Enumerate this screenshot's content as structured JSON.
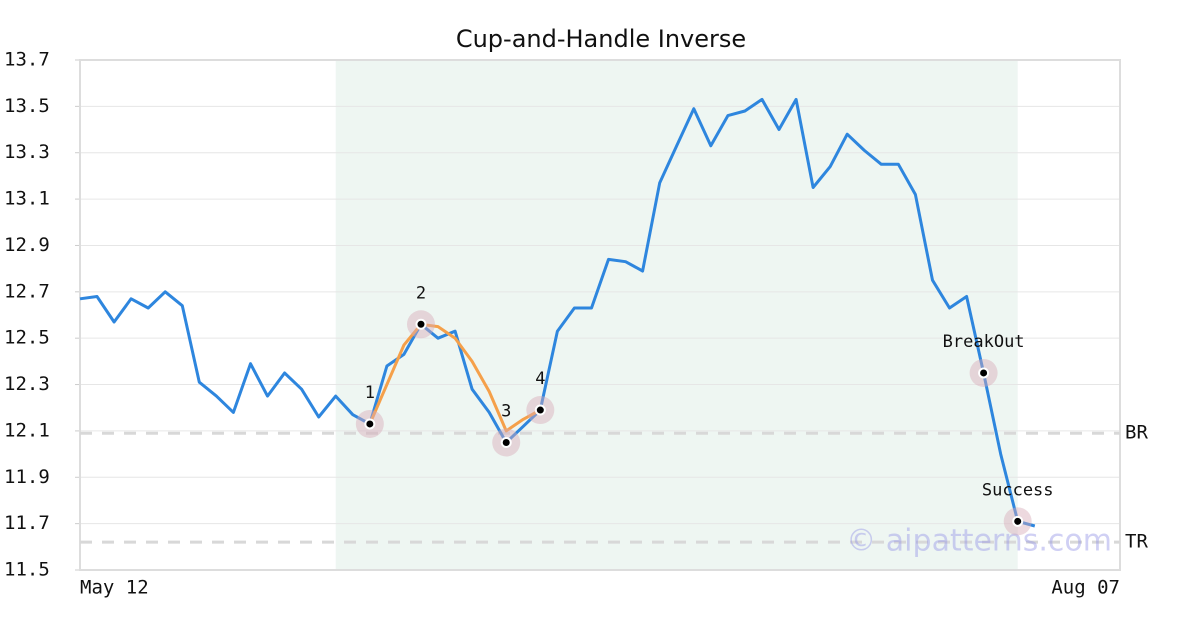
{
  "chart_data": {
    "type": "line",
    "title": "Cup-and-Handle Inverse",
    "categories": [
      "May 12",
      null,
      null,
      null,
      null,
      null,
      null,
      null,
      null,
      null,
      null,
      null,
      null,
      null,
      null,
      null,
      null,
      null,
      null,
      null,
      null,
      null,
      null,
      null,
      null,
      null,
      null,
      null,
      null,
      null,
      null,
      null,
      null,
      null,
      null,
      null,
      null,
      null,
      null,
      null,
      null,
      null,
      null,
      null,
      null,
      null,
      null,
      null,
      null,
      null,
      null,
      null,
      null,
      null,
      null,
      null,
      null,
      null,
      null,
      null,
      null,
      "Aug 07"
    ],
    "series": [
      {
        "color": "#2e86de",
        "values": [
          12.67,
          12.68,
          12.57,
          12.67,
          12.63,
          12.7,
          12.64,
          12.31,
          12.25,
          12.18,
          12.39,
          12.25,
          12.35,
          12.28,
          12.16,
          12.25,
          12.17,
          12.13,
          12.38,
          12.43,
          12.56,
          12.5,
          12.53,
          12.28,
          12.18,
          12.05,
          12.12,
          12.19,
          12.53,
          12.63,
          12.63,
          12.84,
          12.83,
          12.79,
          13.17,
          13.33,
          13.49,
          13.33,
          13.46,
          13.48,
          13.53,
          13.4,
          13.53,
          13.15,
          13.24,
          13.38,
          13.31,
          13.25,
          13.25,
          13.12,
          12.75,
          12.63,
          12.68,
          12.35,
          12.0,
          11.71,
          11.69,
          null,
          null,
          null,
          null,
          null
        ]
      },
      {
        "color": "#f5a04a",
        "values": [
          null,
          null,
          null,
          null,
          null,
          null,
          null,
          null,
          null,
          null,
          null,
          null,
          null,
          null,
          null,
          null,
          null,
          12.13,
          12.3,
          12.47,
          12.56,
          12.55,
          12.5,
          12.4,
          12.27,
          12.1,
          12.15,
          12.19,
          null,
          null,
          null,
          null,
          null,
          null,
          null,
          null,
          null,
          null,
          null,
          null,
          null,
          null,
          null,
          null,
          null,
          null,
          null,
          null,
          null,
          null,
          null,
          null,
          null,
          null,
          null,
          null,
          null,
          null,
          null,
          null,
          null,
          null
        ]
      }
    ],
    "annotations": [
      {
        "label": "1",
        "x": 17,
        "value": 12.13
      },
      {
        "label": "2",
        "x": 20,
        "value": 12.56
      },
      {
        "label": "3",
        "x": 25,
        "value": 12.05
      },
      {
        "label": "4",
        "x": 27,
        "value": 12.19
      },
      {
        "label": "BreakOut",
        "x": 53,
        "value": 12.35
      },
      {
        "label": "Success",
        "x": 55,
        "value": 11.71
      }
    ],
    "levels": [
      {
        "label": "BR",
        "value": 12.09
      },
      {
        "label": "TR",
        "value": 11.62
      }
    ],
    "shaded_range": [
      15,
      55
    ],
    "watermark": "© aipatterns.com",
    "ylim": [
      11.5,
      13.7
    ],
    "yticks": [
      11.5,
      11.7,
      11.9,
      12.1,
      12.3,
      12.5,
      12.7,
      12.9,
      13.1,
      13.3,
      13.5,
      13.7
    ],
    "grid": true
  }
}
